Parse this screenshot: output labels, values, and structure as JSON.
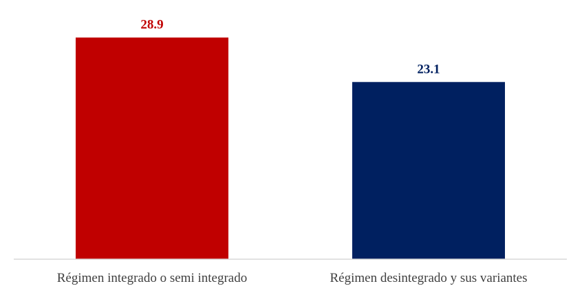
{
  "chart_data": {
    "type": "bar",
    "categories": [
      "Régimen integrado o semi integrado",
      "Régimen desintegrado y sus variantes"
    ],
    "values": [
      28.9,
      23.1
    ],
    "value_labels": [
      "28.9",
      "23.1"
    ],
    "colors": [
      "#c00000",
      "#002060"
    ],
    "ylim": [
      0,
      32
    ],
    "grid": false,
    "legend": "none",
    "title": "",
    "xlabel": "",
    "ylabel": ""
  }
}
